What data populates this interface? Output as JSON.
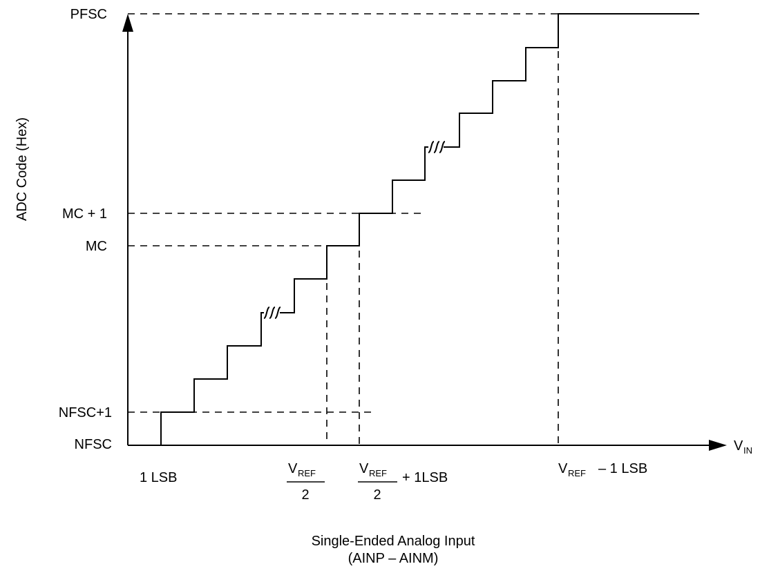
{
  "y_axis": {
    "title": "ADC Code (Hex)",
    "ticks": [
      "PFSC",
      "MC + 1",
      "MC",
      "NFSC+1",
      "NFSC"
    ]
  },
  "x_axis": {
    "symbol_main": "V",
    "symbol_sub": "IN",
    "ticks": {
      "one_lsb": "1 LSB",
      "vref_half": {
        "v": "V",
        "sub": "REF",
        "denominator": "2"
      },
      "vref_half_plus": {
        "v": "V",
        "sub": "REF",
        "denominator": "2",
        "suffix": "+ 1LSB"
      },
      "vref_minus": {
        "v": "V",
        "sub": "REF",
        "suffix": "– 1 LSB"
      }
    }
  },
  "caption": {
    "line1": "Single-Ended Analog Input",
    "line2": "(AINP – AINM)"
  }
}
